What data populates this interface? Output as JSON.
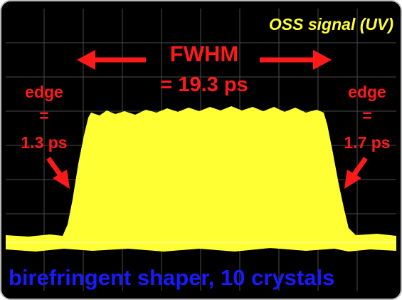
{
  "title": "OSS signal (UV)",
  "fwhm": {
    "label": "FWHM",
    "value": "= 19.3 ps"
  },
  "left_edge": {
    "label": "edge",
    "equals": "=",
    "value": "1.3 ps"
  },
  "right_edge": {
    "label": "edge",
    "equals": "=",
    "value": "1.7 ps"
  },
  "caption": {
    "text": "birefringent shaper,",
    "count": "10",
    "unit": "crystals"
  }
}
